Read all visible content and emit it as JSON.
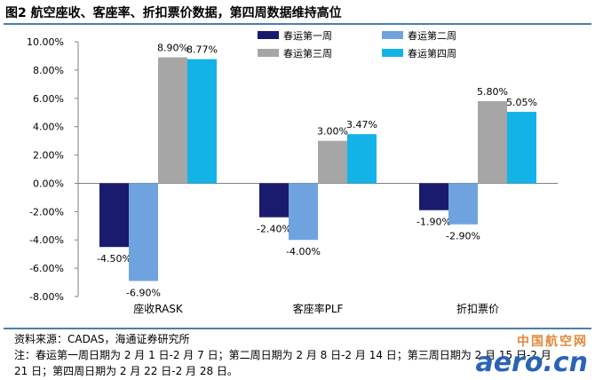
{
  "title": "图2  航空座收、客座率、折扣票价数据，第四周数据维持高位",
  "chart_data": {
    "type": "bar",
    "title": "",
    "xlabel": "",
    "ylabel": "",
    "categories": [
      "座收RASK",
      "客座率PLF",
      "折扣票价"
    ],
    "series": [
      {
        "name": "春运第一周",
        "color": "#1a1a6e",
        "values": [
          -4.5,
          -2.4,
          -1.9
        ]
      },
      {
        "name": "春运第二周",
        "color": "#6fa3df",
        "values": [
          -6.9,
          -4.0,
          -2.9
        ]
      },
      {
        "name": "春运第三周",
        "color": "#a6a6a6",
        "values": [
          8.9,
          3.0,
          5.8
        ]
      },
      {
        "name": "春运第四周",
        "color": "#13b3e8",
        "values": [
          8.77,
          3.47,
          5.05
        ]
      }
    ],
    "value_labels": [
      [
        "-4.50%",
        "-2.40%",
        "-1.90%"
      ],
      [
        "-6.90%",
        "-4.00%",
        "-2.90%"
      ],
      [
        "8.90%",
        "3.00%",
        "5.80%"
      ],
      [
        "8.77%",
        "3.47%",
        "5.05%"
      ]
    ],
    "ylim": [
      -8,
      10
    ],
    "yticks": [
      10,
      8,
      6,
      4,
      2,
      0,
      -2,
      -4,
      -6,
      -8
    ],
    "ytick_labels": [
      "10.00%",
      "8.00%",
      "6.00%",
      "4.00%",
      "2.00%",
      "0.00%",
      "-2.00%",
      "-4.00%",
      "-6.00%",
      "-8.00%"
    ],
    "grid": false,
    "legend_position": "top-right"
  },
  "notes": {
    "source": "资料来源：CADAS，海通证券研究所",
    "line1": "注：春运第一周日期为 2 月 1 日-2 月 7 日；第二周日期为 2 月 8 日-2 月 14 日；第三周日期为 2 月 15 日-2 月",
    "line2": "21 日；第四周日期为 2 月 22 日-2 月 28 日。"
  },
  "watermark": {
    "cn": "中国航空网",
    "en": "aero.cn"
  }
}
